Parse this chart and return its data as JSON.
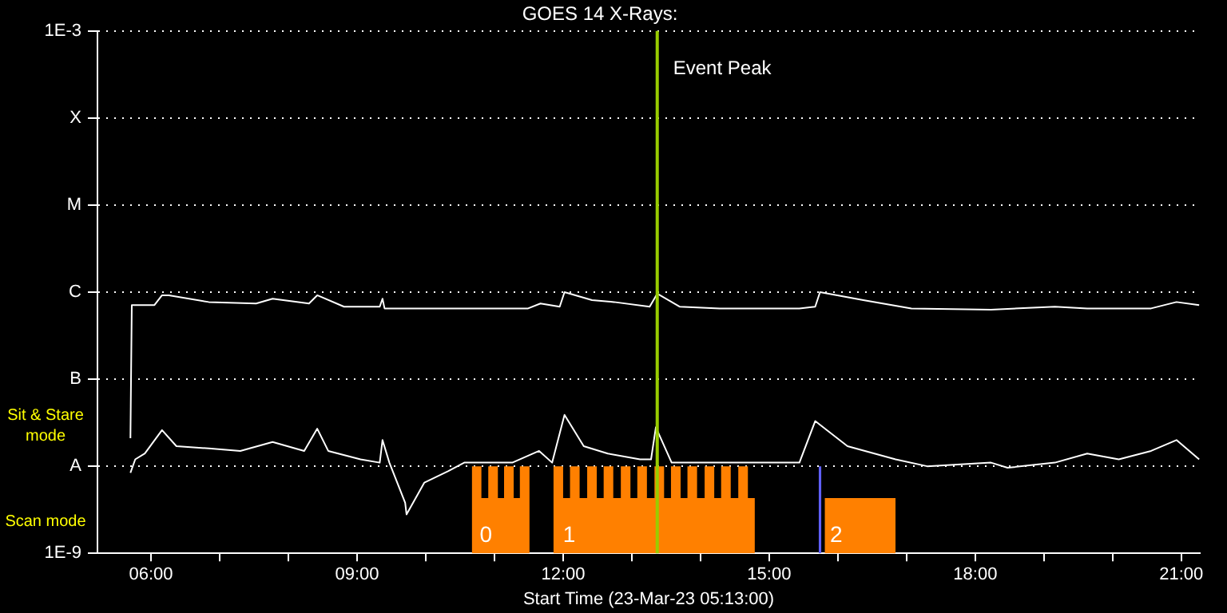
{
  "chart_data": {
    "type": "line",
    "title": "GOES 14 X-Rays:",
    "xlabel": "Start Time (23-Mar-23 05:13:00)",
    "log": "y",
    "grid": "y",
    "xlim": [
      5.22,
      21.27
    ],
    "xticks": [
      {
        "value": 6,
        "label": "06:00"
      },
      {
        "value": 7,
        "label": null
      },
      {
        "value": 8,
        "label": null
      },
      {
        "value": 9,
        "label": "09:00"
      },
      {
        "value": 10,
        "label": null
      },
      {
        "value": 11,
        "label": null
      },
      {
        "value": 12,
        "label": "12:00"
      },
      {
        "value": 13,
        "label": null
      },
      {
        "value": 14,
        "label": null
      },
      {
        "value": 15,
        "label": "15:00"
      },
      {
        "value": 16,
        "label": null
      },
      {
        "value": 17,
        "label": null
      },
      {
        "value": 18,
        "label": "18:00"
      },
      {
        "value": 19,
        "label": null
      },
      {
        "value": 20,
        "label": null
      },
      {
        "value": 21,
        "label": "21:00"
      }
    ],
    "ylim": [
      1e-09,
      0.001
    ],
    "yticks": [
      {
        "value": 1e-09,
        "label": "1E-9"
      },
      {
        "value": 1e-08,
        "label": "A"
      },
      {
        "value": 1e-07,
        "label": "B"
      },
      {
        "value": 1e-06,
        "label": "C"
      },
      {
        "value": 1e-05,
        "label": "M"
      },
      {
        "value": 0.0001,
        "label": "X"
      },
      {
        "value": 0.001,
        "label": "1E-3"
      }
    ],
    "series": [
      {
        "type": "area",
        "color": "#ff8000",
        "x": [
          10.67,
          10.67,
          10.81,
          10.81,
          10.91,
          10.91,
          11.05,
          11.05,
          11.14,
          11.14,
          11.28,
          11.28,
          11.37,
          11.37,
          11.51,
          11.51,
          11.86,
          11.86,
          12.0,
          12.0,
          12.1,
          12.1,
          12.24,
          12.24,
          12.35,
          12.35,
          12.49,
          12.49,
          12.59,
          12.59,
          12.73,
          12.73,
          12.84,
          12.84,
          12.98,
          12.98,
          13.08,
          13.08,
          13.22,
          13.22,
          13.33,
          13.33,
          13.47,
          13.47,
          13.57,
          13.57,
          13.71,
          13.71,
          13.81,
          13.81,
          13.95,
          13.95,
          14.06,
          14.06,
          14.2,
          14.2,
          14.3,
          14.3,
          14.44,
          14.44,
          14.55,
          14.55,
          14.69,
          14.69,
          14.79,
          14.79,
          15.81,
          15.81,
          16.84,
          16.84
        ],
        "values": [
          1e-09,
          1e-08,
          1e-08,
          4.3e-09,
          4.3e-09,
          1e-08,
          1e-08,
          4.3e-09,
          4.3e-09,
          1e-08,
          1e-08,
          4.3e-09,
          4.3e-09,
          1e-08,
          1e-08,
          1e-09,
          1e-09,
          1e-08,
          1e-08,
          4.3e-09,
          4.3e-09,
          1e-08,
          1e-08,
          4.3e-09,
          4.3e-09,
          1e-08,
          1e-08,
          4.3e-09,
          4.3e-09,
          1e-08,
          1e-08,
          4.3e-09,
          4.3e-09,
          1e-08,
          1e-08,
          4.3e-09,
          4.3e-09,
          1e-08,
          1e-08,
          4.3e-09,
          4.3e-09,
          1e-08,
          1e-08,
          4.3e-09,
          4.3e-09,
          1e-08,
          1e-08,
          4.3e-09,
          4.3e-09,
          1e-08,
          1e-08,
          4.3e-09,
          4.3e-09,
          1e-08,
          1e-08,
          4.3e-09,
          4.3e-09,
          1e-08,
          1e-08,
          4.3e-09,
          4.3e-09,
          1e-08,
          1e-08,
          4.3e-09,
          4.3e-09,
          1e-09,
          1e-09,
          4.3e-09,
          4.3e-09,
          1e-09
        ]
      },
      {
        "type": "area",
        "color": "#6060ff",
        "x": [
          15.72,
          15.76
        ],
        "values": [
          1e-08,
          1e-08
        ]
      },
      {
        "color": "#ffffff",
        "x": [
          5.7,
          5.72,
          6.05,
          6.16,
          6.26,
          6.84,
          7.53,
          7.77,
          8.3,
          8.42,
          8.81,
          9.33,
          9.37,
          9.4,
          11.49,
          11.67,
          11.95,
          12.02,
          12.42,
          12.74,
          13.26,
          13.37,
          13.7,
          14.28,
          15.44,
          15.67,
          15.74,
          16.37,
          17.07,
          18.23,
          19.16,
          19.63,
          20.56,
          20.93,
          21.26
        ],
        "values": [
          2.1e-08,
          7.1e-07,
          7.1e-07,
          9.2e-07,
          9.2e-07,
          7.7e-07,
          7.4e-07,
          8.4e-07,
          7.4e-07,
          9.2e-07,
          6.8e-07,
          6.8e-07,
          8.4e-07,
          6.5e-07,
          6.5e-07,
          7.4e-07,
          6.8e-07,
          1e-06,
          8.1e-07,
          7.7e-07,
          6.8e-07,
          9.6e-07,
          6.8e-07,
          6.5e-07,
          6.5e-07,
          6.8e-07,
          1e-06,
          8.1e-07,
          6.5e-07,
          6.3e-07,
          6.8e-07,
          6.5e-07,
          6.5e-07,
          7.7e-07,
          7.1e-07
        ]
      },
      {
        "color": "#ffffff",
        "x": [
          5.7,
          5.77,
          5.91,
          6.16,
          6.37,
          6.84,
          7.3,
          7.77,
          8.23,
          8.42,
          8.58,
          9.05,
          9.33,
          9.37,
          9.47,
          9.7,
          9.72,
          9.98,
          10.33,
          10.56,
          11.26,
          11.65,
          11.84,
          12.02,
          12.3,
          12.65,
          13.12,
          13.28,
          13.35,
          13.58,
          14.28,
          15.44,
          15.67,
          16.14,
          16.84,
          17.3,
          18.23,
          18.47,
          19.16,
          19.63,
          20.09,
          20.56,
          20.93,
          21.26
        ],
        "values": [
          8.4e-09,
          1.2e-08,
          1.4e-08,
          2.6e-08,
          1.7e-08,
          1.6e-08,
          1.5e-08,
          1.9e-08,
          1.5e-08,
          2.7e-08,
          1.5e-08,
          1.2e-08,
          1.1e-08,
          2e-08,
          1.1e-08,
          3.8e-09,
          2.8e-09,
          6.5e-09,
          8.8e-09,
          1.1e-08,
          1.1e-08,
          1.5e-08,
          1.1e-08,
          3.9e-08,
          1.7e-08,
          1.4e-08,
          1.2e-08,
          1.2e-08,
          2.8e-08,
          1.1e-08,
          1.1e-08,
          1.1e-08,
          3.3e-08,
          1.7e-08,
          1.2e-08,
          1e-08,
          1.1e-08,
          9.6e-09,
          1.1e-08,
          1.4e-08,
          1.2e-08,
          1.5e-08,
          2e-08,
          1.2e-08
        ]
      }
    ],
    "ref_lines": [
      {
        "axis": "x",
        "value": 13.37,
        "label": "Event Peak",
        "color": "#99cc00"
      }
    ],
    "annotations": [
      "Sit & Stare mode",
      "Scan mode",
      {
        "text": "0",
        "x": 10.74,
        "y": 1.6e-09
      },
      {
        "text": "1",
        "x": 11.95,
        "y": 1.6e-09
      },
      {
        "text": "2",
        "x": 15.84,
        "y": 1.6e-09
      }
    ]
  }
}
